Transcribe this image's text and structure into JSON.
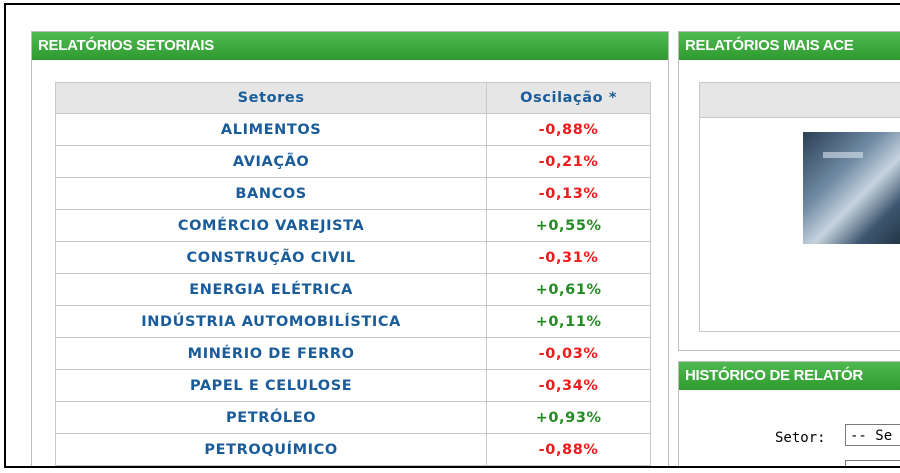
{
  "left_panel": {
    "title": "RELATÓRIOS SETORIAIS",
    "table": {
      "col_sector": "Setores",
      "col_osc": "Oscilação *",
      "rows": [
        {
          "name": "ALIMENTOS",
          "osc": "-0,88%",
          "trend": "neg"
        },
        {
          "name": "AVIAÇÃO",
          "osc": "-0,21%",
          "trend": "neg"
        },
        {
          "name": "BANCOS",
          "osc": "-0,13%",
          "trend": "neg"
        },
        {
          "name": "COMÉRCIO VAREJISTA",
          "osc": "+0,55%",
          "trend": "pos"
        },
        {
          "name": "CONSTRUÇÃO CIVIL",
          "osc": "-0,31%",
          "trend": "neg"
        },
        {
          "name": "ENERGIA ELÉTRICA",
          "osc": "+0,61%",
          "trend": "pos"
        },
        {
          "name": "INDÚSTRIA AUTOMOBILÍSTICA",
          "osc": "+0,11%",
          "trend": "pos"
        },
        {
          "name": "MINÉRIO DE FERRO",
          "osc": "-0,03%",
          "trend": "neg"
        },
        {
          "name": "PAPEL E CELULOSE",
          "osc": "-0,34%",
          "trend": "neg"
        },
        {
          "name": "PETRÓLEO",
          "osc": "+0,93%",
          "trend": "pos"
        },
        {
          "name": "PETROQUÍMICO",
          "osc": "-0,88%",
          "trend": "neg"
        }
      ]
    }
  },
  "right_top": {
    "title": "RELATÓRIOS MAIS ACE"
  },
  "right_bottom": {
    "title": "HISTÓRICO DE RELATÓR",
    "setor_label": "Setor:",
    "setor_value": "-- Se"
  },
  "colors": {
    "header_green": "#3aa93a",
    "negative": "#ee1c1c",
    "positive": "#228b22",
    "link_blue": "#1a5c9a"
  }
}
